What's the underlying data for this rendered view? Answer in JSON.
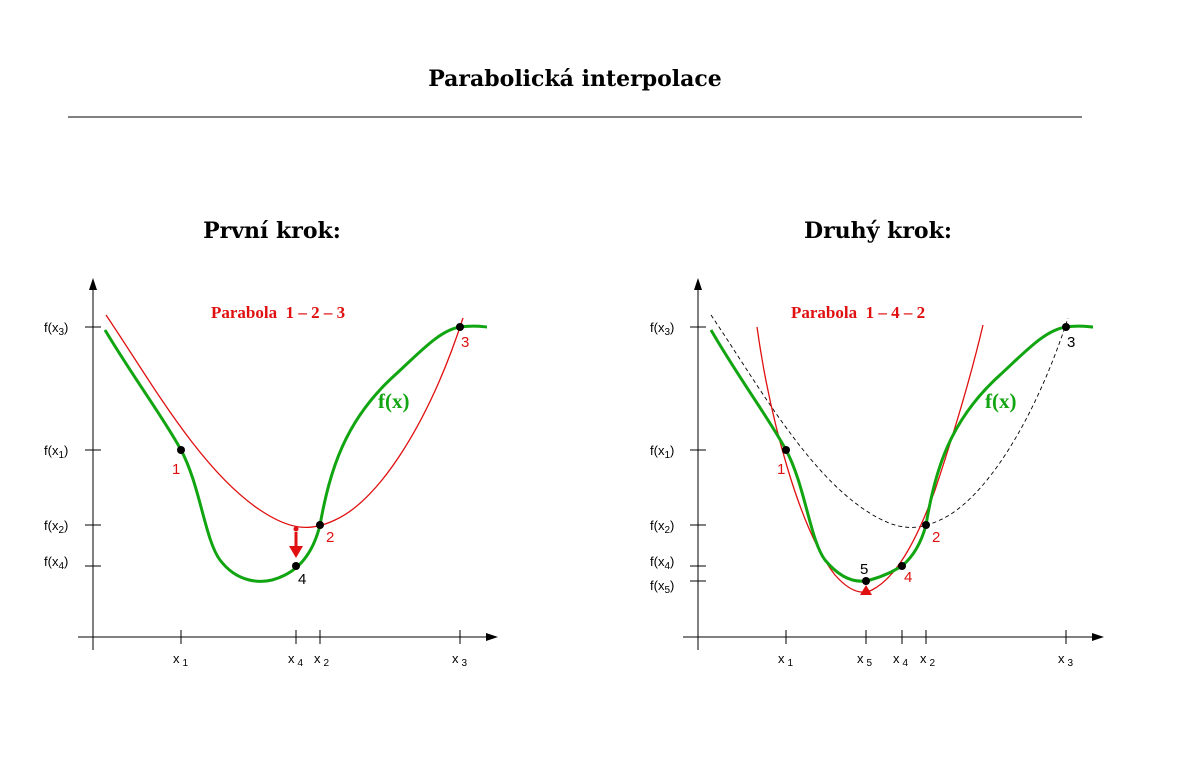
{
  "title": "Parabolická interpolace",
  "colors": {
    "curve": "#11a511",
    "parabola": "#e01010",
    "points": "#000000",
    "dashed": "#000000"
  },
  "panels": [
    {
      "title": "První krok:",
      "parabola_label": "Parabola  1 – 2 – 3",
      "curve_label": "f(x)",
      "x_ticks": [
        {
          "base": "x",
          "sub": "1"
        },
        {
          "base": "x",
          "sub": "4"
        },
        {
          "base": "x",
          "sub": "2"
        },
        {
          "base": "x",
          "sub": "3"
        }
      ],
      "y_ticks": [
        {
          "text": "f(x",
          "sub": "3",
          "close": ")"
        },
        {
          "text": "f(x",
          "sub": "1",
          "close": ")"
        },
        {
          "text": "f(x",
          "sub": "2",
          "close": ")"
        },
        {
          "text": "f(x",
          "sub": "4",
          "close": ")"
        }
      ],
      "point_labels": [
        "1",
        "2",
        "3",
        "4"
      ]
    },
    {
      "title": "Druhý krok:",
      "parabola_label": "Parabola  1 – 4 – 2",
      "curve_label": "f(x)",
      "x_ticks": [
        {
          "base": "x",
          "sub": "1"
        },
        {
          "base": "x",
          "sub": "5"
        },
        {
          "base": "x",
          "sub": "4"
        },
        {
          "base": "x",
          "sub": "2"
        },
        {
          "base": "x",
          "sub": "3"
        }
      ],
      "y_ticks": [
        {
          "text": "f(x",
          "sub": "3",
          "close": ")"
        },
        {
          "text": "f(x",
          "sub": "1",
          "close": ")"
        },
        {
          "text": "f(x",
          "sub": "2",
          "close": ")"
        },
        {
          "text": "f(x",
          "sub": "4",
          "close": ")"
        },
        {
          "text": "f(x",
          "sub": "5",
          "close": ")"
        }
      ],
      "point_labels": [
        "1",
        "2",
        "3",
        "4",
        "5"
      ]
    }
  ]
}
